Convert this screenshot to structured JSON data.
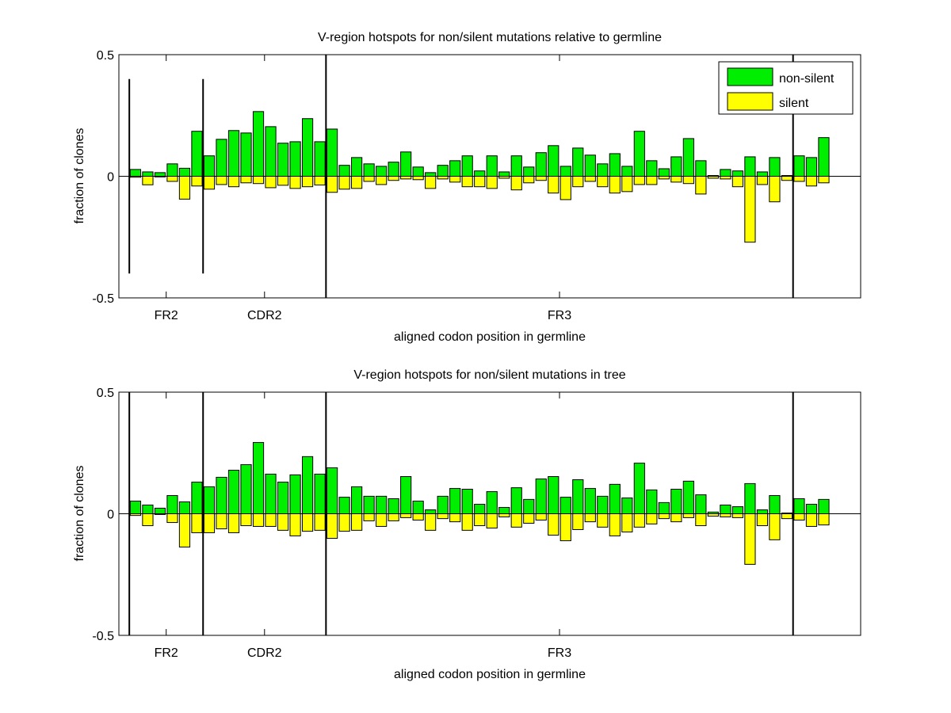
{
  "colors": {
    "nonsilent": "#00ee00",
    "silent": "#ffff00",
    "axis": "#000000"
  },
  "chart_data": [
    {
      "type": "bar",
      "title": "V-region hotspots for non/silent mutations relative to germline",
      "xlabel": "aligned codon position in germline",
      "ylabel": "fraction of clones",
      "xlim": [
        -0.35,
        60
      ],
      "ylim": [
        -0.5,
        0.5
      ],
      "yticks": [
        {
          "value": 0.5,
          "label": "0.5"
        },
        {
          "value": 0,
          "label": "0"
        },
        {
          "value": -0.5,
          "label": "-0.5"
        }
      ],
      "region_labels": [
        {
          "x": 3.5,
          "label": "FR2"
        },
        {
          "x": 11.5,
          "label": "CDR2"
        },
        {
          "x": 35.5,
          "label": "FR3"
        }
      ],
      "boundaries": [
        {
          "x": 0.5,
          "ymin": -0.4,
          "ymax": 0.4
        },
        {
          "x": 6.5,
          "ymin": -0.4,
          "ymax": 0.4
        },
        {
          "x": 16.5,
          "ymin": -0.5,
          "ymax": 0.5
        },
        {
          "x": 54.5,
          "ymin": -0.5,
          "ymax": 0.5
        }
      ],
      "legend": {
        "placement": "top-right",
        "entries": [
          "non-silent",
          "silent"
        ]
      },
      "x": [
        1,
        2,
        3,
        4,
        5,
        6,
        7,
        8,
        9,
        10,
        11,
        12,
        13,
        14,
        15,
        16,
        17,
        18,
        19,
        20,
        21,
        22,
        23,
        24,
        25,
        26,
        27,
        28,
        29,
        30,
        31,
        32,
        33,
        34,
        35,
        36,
        37,
        38,
        39,
        40,
        41,
        42,
        43,
        44,
        45,
        46,
        47,
        48,
        49,
        50,
        51,
        52,
        53,
        54,
        55,
        56,
        57
      ],
      "series": [
        {
          "name": "non-silent",
          "values": [
            0.028,
            0.018,
            0.015,
            0.051,
            0.033,
            0.185,
            0.084,
            0.152,
            0.188,
            0.178,
            0.266,
            0.204,
            0.136,
            0.142,
            0.237,
            0.142,
            0.194,
            0.045,
            0.077,
            0.051,
            0.041,
            0.058,
            0.1,
            0.038,
            0.015,
            0.045,
            0.064,
            0.084,
            0.022,
            0.084,
            0.018,
            0.084,
            0.038,
            0.097,
            0.126,
            0.041,
            0.116,
            0.087,
            0.051,
            0.093,
            0.041,
            0.185,
            0.064,
            0.031,
            0.08,
            0.155,
            0.064,
            0.003,
            0.028,
            0.022,
            0.08,
            0.018,
            0.077,
            0.003,
            0.084,
            0.077,
            0.159
          ]
        },
        {
          "name": "silent",
          "values": [
            -0.004,
            -0.035,
            0,
            -0.021,
            -0.094,
            -0.04,
            -0.053,
            -0.034,
            -0.043,
            -0.027,
            -0.03,
            -0.047,
            -0.037,
            -0.05,
            -0.043,
            -0.036,
            -0.066,
            -0.053,
            -0.05,
            -0.021,
            -0.034,
            -0.017,
            -0.011,
            -0.014,
            -0.05,
            -0.011,
            -0.024,
            -0.043,
            -0.043,
            -0.05,
            -0.008,
            -0.056,
            -0.027,
            -0.017,
            -0.069,
            -0.096,
            -0.043,
            -0.021,
            -0.043,
            -0.069,
            -0.063,
            -0.034,
            -0.034,
            -0.011,
            -0.024,
            -0.03,
            -0.073,
            -0.008,
            -0.011,
            -0.043,
            -0.271,
            -0.034,
            -0.105,
            -0.017,
            -0.021,
            -0.04,
            -0.027
          ]
        }
      ]
    },
    {
      "type": "bar",
      "title": "V-region hotspots for non/silent mutations in tree",
      "xlabel": "aligned codon position in germline",
      "ylabel": "fraction of clones",
      "xlim": [
        -0.35,
        60
      ],
      "ylim": [
        -0.5,
        0.5
      ],
      "yticks": [
        {
          "value": 0.5,
          "label": "0.5"
        },
        {
          "value": 0,
          "label": "0"
        },
        {
          "value": -0.5,
          "label": "-0.5"
        }
      ],
      "region_labels": [
        {
          "x": 3.5,
          "label": "FR2"
        },
        {
          "x": 11.5,
          "label": "CDR2"
        },
        {
          "x": 35.5,
          "label": "FR3"
        }
      ],
      "boundaries": [
        {
          "x": 0.5,
          "ymin": -0.5,
          "ymax": 0.5
        },
        {
          "x": 6.5,
          "ymin": -0.5,
          "ymax": 0.5
        },
        {
          "x": 16.5,
          "ymin": -0.5,
          "ymax": 0.5
        },
        {
          "x": 54.5,
          "ymin": -0.5,
          "ymax": 0.5
        }
      ],
      "x": [
        1,
        2,
        3,
        4,
        5,
        6,
        7,
        8,
        9,
        10,
        11,
        12,
        13,
        14,
        15,
        16,
        17,
        18,
        19,
        20,
        21,
        22,
        23,
        24,
        25,
        26,
        27,
        28,
        29,
        30,
        31,
        32,
        33,
        34,
        35,
        36,
        37,
        38,
        39,
        40,
        41,
        42,
        43,
        44,
        45,
        46,
        47,
        48,
        49,
        50,
        51,
        52,
        53,
        54,
        55,
        56,
        57
      ],
      "series": [
        {
          "name": "non-silent",
          "values": [
            0.052,
            0.036,
            0.023,
            0.075,
            0.049,
            0.13,
            0.111,
            0.15,
            0.179,
            0.202,
            0.293,
            0.163,
            0.13,
            0.16,
            0.235,
            0.163,
            0.189,
            0.068,
            0.111,
            0.072,
            0.072,
            0.062,
            0.153,
            0.052,
            0.016,
            0.072,
            0.104,
            0.101,
            0.039,
            0.091,
            0.026,
            0.107,
            0.059,
            0.143,
            0.153,
            0.068,
            0.14,
            0.104,
            0.072,
            0.121,
            0.065,
            0.208,
            0.098,
            0.046,
            0.101,
            0.134,
            0.078,
            0.007,
            0.036,
            0.029,
            0.124,
            0.016,
            0.075,
            0.003,
            0.062,
            0.039,
            0.059
          ]
        },
        {
          "name": "silent",
          "values": [
            -0.007,
            -0.049,
            -0.003,
            -0.036,
            -0.137,
            -0.078,
            -0.078,
            -0.062,
            -0.078,
            -0.049,
            -0.052,
            -0.052,
            -0.068,
            -0.091,
            -0.072,
            -0.068,
            -0.101,
            -0.072,
            -0.068,
            -0.029,
            -0.052,
            -0.029,
            -0.016,
            -0.026,
            -0.068,
            -0.02,
            -0.033,
            -0.068,
            -0.049,
            -0.059,
            -0.013,
            -0.055,
            -0.039,
            -0.026,
            -0.088,
            -0.111,
            -0.065,
            -0.033,
            -0.055,
            -0.091,
            -0.075,
            -0.055,
            -0.042,
            -0.02,
            -0.033,
            -0.016,
            -0.049,
            -0.01,
            -0.013,
            -0.016,
            -0.208,
            -0.049,
            -0.107,
            -0.02,
            -0.026,
            -0.052,
            -0.046
          ]
        }
      ]
    }
  ]
}
